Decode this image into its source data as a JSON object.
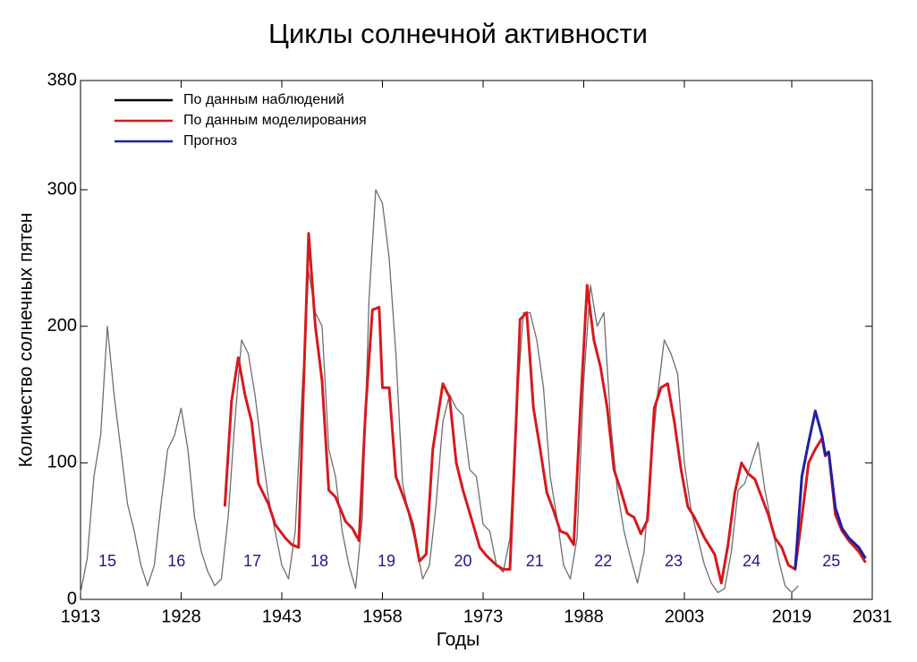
{
  "chart_data": {
    "type": "line",
    "title": "Циклы солнечной активности",
    "x_label": "Годы",
    "y_label": "Количество солнечных пятен",
    "xlim": [
      1913,
      2031
    ],
    "ylim": [
      0,
      380
    ],
    "xticks": [
      1913,
      1928,
      1943,
      1958,
      1973,
      1988,
      2003,
      2019,
      2031
    ],
    "yticks": [
      0,
      100,
      200,
      300,
      380
    ],
    "legend": "upper-left",
    "series": [
      {
        "name": "По данным наблюдений",
        "color": "#6e6e6e",
        "x": [
          1913,
          1914,
          1915,
          1916,
          1917,
          1918,
          1919,
          1920,
          1921,
          1922,
          1923,
          1924,
          1925,
          1926,
          1927,
          1928,
          1929,
          1930,
          1931,
          1932,
          1933,
          1934,
          1935,
          1936,
          1937,
          1938,
          1939,
          1940,
          1941,
          1942,
          1943,
          1944,
          1945,
          1946,
          1947,
          1948,
          1949,
          1950,
          1951,
          1952,
          1953,
          1954,
          1955,
          1956,
          1957,
          1958,
          1959,
          1960,
          1961,
          1962,
          1963,
          1964,
          1965,
          1966,
          1967,
          1968,
          1969,
          1970,
          1971,
          1972,
          1973,
          1974,
          1975,
          1976,
          1977,
          1978,
          1979,
          1980,
          1981,
          1982,
          1983,
          1984,
          1985,
          1986,
          1987,
          1988,
          1989,
          1990,
          1991,
          1992,
          1993,
          1994,
          1995,
          1996,
          1997,
          1998,
          1999,
          2000,
          2001,
          2002,
          2003,
          2004,
          2005,
          2006,
          2007,
          2008,
          2009,
          2010,
          2011,
          2012,
          2013,
          2014,
          2015,
          2016,
          2017,
          2018,
          2019,
          2020
        ],
        "values": [
          5,
          30,
          90,
          120,
          200,
          150,
          110,
          70,
          50,
          25,
          10,
          25,
          70,
          110,
          120,
          140,
          110,
          60,
          35,
          20,
          10,
          15,
          60,
          130,
          190,
          180,
          150,
          110,
          75,
          50,
          25,
          15,
          50,
          150,
          240,
          210,
          200,
          110,
          90,
          50,
          25,
          8,
          60,
          220,
          300,
          290,
          250,
          180,
          85,
          60,
          40,
          15,
          25,
          70,
          130,
          150,
          140,
          135,
          95,
          90,
          55,
          50,
          25,
          20,
          45,
          140,
          210,
          210,
          190,
          155,
          90,
          60,
          25,
          15,
          45,
          160,
          230,
          200,
          210,
          130,
          80,
          50,
          30,
          12,
          35,
          100,
          150,
          190,
          180,
          165,
          100,
          65,
          45,
          25,
          12,
          5,
          8,
          35,
          80,
          85,
          100,
          115,
          80,
          55,
          30,
          10,
          5,
          10
        ]
      },
      {
        "name": "По данным моделирования",
        "color": "#d7191c",
        "x": [
          1934.5,
          1935.5,
          1936.5,
          1937.5,
          1938.5,
          1939.5,
          1941,
          1942,
          1943.5,
          1944.5,
          1945.5,
          1946.2,
          1947,
          1948,
          1949,
          1950,
          1951,
          1952.5,
          1953.5,
          1954.5,
          1955.5,
          1956.5,
          1957.5,
          1958,
          1959,
          1960,
          1961.5,
          1962.5,
          1963.5,
          1964.5,
          1965.5,
          1967,
          1968,
          1969,
          1970,
          1971.5,
          1972.5,
          1973.5,
          1975,
          1976,
          1977,
          1978,
          1978.5,
          1979.5,
          1980.5,
          1981.5,
          1982.5,
          1983.5,
          1984.5,
          1985.5,
          1986.5,
          1987.5,
          1988.5,
          1989.5,
          1990.5,
          1991.5,
          1992.5,
          1993.5,
          1994.5,
          1995.5,
          1996.5,
          1997.5,
          1998.5,
          1999.5,
          2000.5,
          2001.5,
          2002.5,
          2003.5,
          2004.5,
          2006,
          2007.5,
          2008.5,
          2009.5,
          2010.5,
          2011.5,
          2012.5,
          2013.5,
          2014.5,
          2015.5,
          2016.5,
          2017.5,
          2018.5,
          2019.5,
          2020.5,
          2021.5,
          2022.5,
          2023.5,
          2024,
          2024.5,
          2025.5,
          2026.5,
          2027.5,
          2029,
          2030
        ],
        "values": [
          68,
          145,
          177,
          150,
          130,
          85,
          70,
          55,
          45,
          40,
          38,
          150,
          268,
          200,
          160,
          80,
          75,
          57,
          52,
          43,
          140,
          212,
          214,
          155,
          155,
          90,
          70,
          55,
          28,
          33,
          110,
          158,
          148,
          100,
          80,
          55,
          38,
          32,
          25,
          22,
          22,
          140,
          205,
          210,
          140,
          110,
          78,
          65,
          50,
          48,
          40,
          140,
          230,
          190,
          170,
          140,
          95,
          80,
          63,
          60,
          48,
          58,
          140,
          155,
          158,
          130,
          95,
          68,
          60,
          45,
          33,
          12,
          40,
          78,
          100,
          92,
          88,
          75,
          62,
          45,
          38,
          25,
          22,
          60,
          100,
          110,
          118,
          105,
          108,
          62,
          50,
          43,
          35,
          27
        ]
      },
      {
        "name": "Прогноз",
        "color": "#1f1fa8",
        "x": [
          2019.5,
          2020.5,
          2021.5,
          2022.5,
          2023.5,
          2024,
          2024.5,
          2025.5,
          2026.5,
          2027.5,
          2029,
          2030
        ],
        "values": [
          22,
          90,
          115,
          138,
          120,
          106,
          108,
          67,
          52,
          45,
          38,
          30
        ]
      }
    ],
    "annotations": [
      {
        "text": "15",
        "x": 1917
      },
      {
        "text": "16",
        "x": 1927.3
      },
      {
        "text": "17",
        "x": 1938.6
      },
      {
        "text": "18",
        "x": 1948.6
      },
      {
        "text": "19",
        "x": 1958.6
      },
      {
        "text": "20",
        "x": 1970
      },
      {
        "text": "21",
        "x": 1980.7
      },
      {
        "text": "22",
        "x": 1990.9
      },
      {
        "text": "23",
        "x": 2001.4
      },
      {
        "text": "24",
        "x": 2013
      },
      {
        "text": "25",
        "x": 2024.9
      }
    ]
  }
}
